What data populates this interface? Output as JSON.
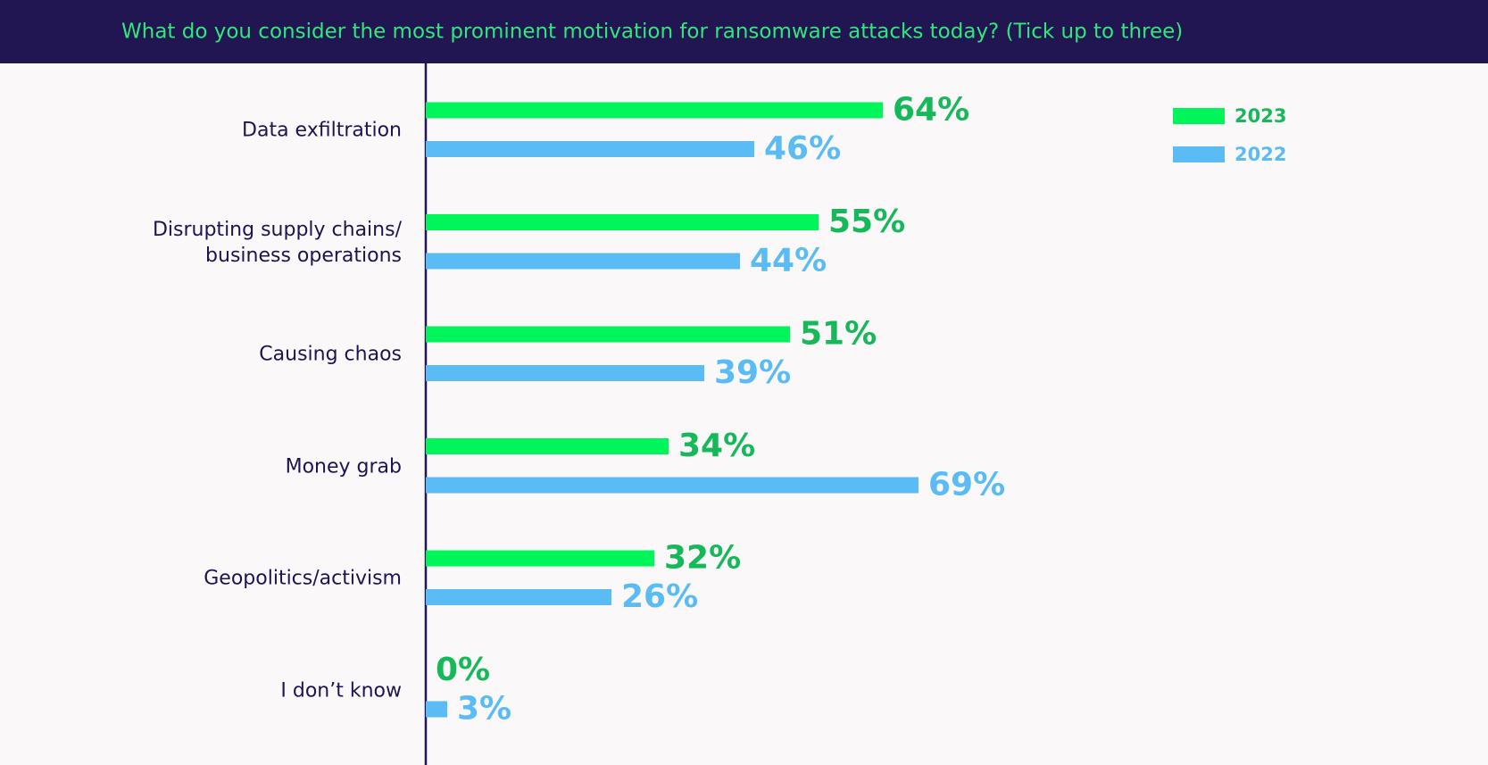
{
  "chart_data": {
    "type": "bar",
    "orientation": "horizontal",
    "title": "What do you consider the most prominent motivation for ransomware attacks today? (Tick up to three)",
    "categories": [
      "Data exfiltration",
      "Disrupting supply chains/\nbusiness operations",
      "Causing chaos",
      "Money grab",
      "Geopolitics/activism",
      "I don’t know"
    ],
    "series": [
      {
        "name": "2023",
        "color": "#00f55a",
        "label_color": "#16b85a",
        "values": [
          64,
          55,
          51,
          34,
          32,
          0
        ],
        "value_labels": [
          "64%",
          "55%",
          "51%",
          "34%",
          "32%",
          "0%"
        ]
      },
      {
        "name": "2022",
        "color": "#5bbcf5",
        "label_color": "#5bbcf5",
        "values": [
          46,
          44,
          39,
          69,
          26,
          3
        ],
        "value_labels": [
          "46%",
          "44%",
          "39%",
          "69%",
          "26%",
          "3%"
        ]
      }
    ],
    "legend": "top-right"
  }
}
